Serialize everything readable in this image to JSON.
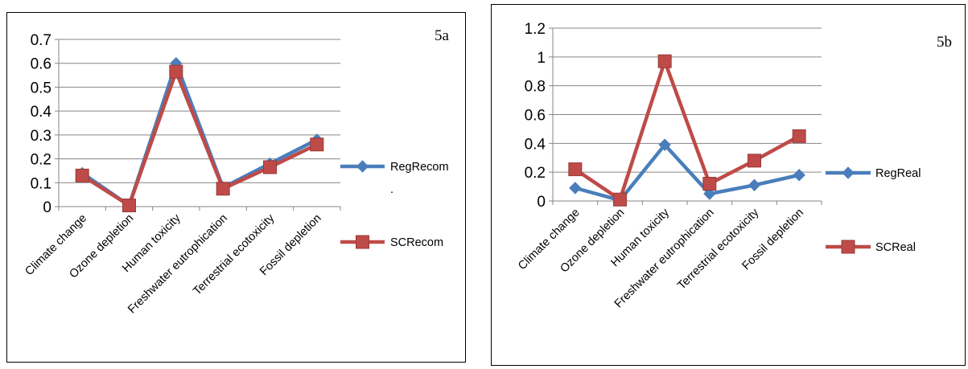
{
  "chart_data": [
    {
      "type": "line",
      "tag": "5a",
      "categories": [
        "Climate change",
        "Ozone depletion",
        "Human toxicity",
        "Freshwater eutrophication",
        "Terrestrial ecotoxicity",
        "Fossil depletion"
      ],
      "series": [
        {
          "name": "RegRecom",
          "values": [
            0.14,
            0.005,
            0.6,
            0.08,
            0.18,
            0.28
          ],
          "color": "#4a7ebb",
          "marker": "diamond"
        },
        {
          "name": "SCRecom",
          "values": [
            0.13,
            0.005,
            0.565,
            0.075,
            0.165,
            0.26
          ],
          "color": "#be4b48",
          "marker": "square"
        }
      ],
      "yticks": [
        "0",
        "0.1",
        "0.2",
        "0.3",
        "0.4",
        "0.5",
        "0.6",
        "0.7"
      ],
      "ylim": [
        0,
        0.7
      ],
      "legend_note": ".",
      "grid": true,
      "legend": "right"
    },
    {
      "type": "line",
      "tag": "5b",
      "categories": [
        "Climate change",
        "Ozone depletion",
        "Human toxicity",
        "Freshwater eutrophication",
        "Terrestrial ecotoxicity",
        "Fossil depletion"
      ],
      "series": [
        {
          "name": "RegReal",
          "values": [
            0.09,
            0.005,
            0.39,
            0.05,
            0.11,
            0.18
          ],
          "color": "#4a7ebb",
          "marker": "diamond"
        },
        {
          "name": "SCReal",
          "values": [
            0.22,
            0.01,
            0.97,
            0.12,
            0.28,
            0.45
          ],
          "color": "#be4b48",
          "marker": "square"
        }
      ],
      "yticks": [
        "0",
        "0.2",
        "0.4",
        "0.6",
        "0.8",
        "1",
        "1.2"
      ],
      "ylim": [
        0,
        1.2
      ],
      "grid": true,
      "legend": "right"
    }
  ]
}
